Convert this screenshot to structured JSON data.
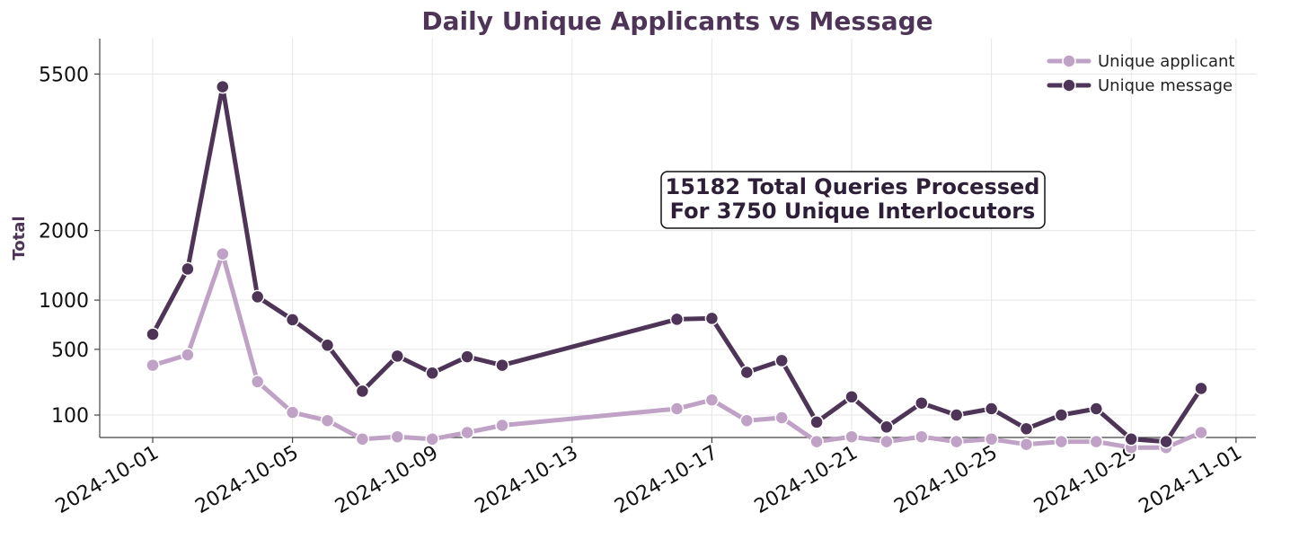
{
  "chart_data": {
    "type": "line",
    "title": "Daily Unique Applicants vs Message",
    "xlabel": "",
    "ylabel": "Total",
    "x_axis": "date",
    "xlim": [
      "2024-09-29",
      "2024-11-01"
    ],
    "ylim": [
      -250,
      5500
    ],
    "y_scale": "sqrt",
    "grid": true,
    "legend_position": "top-right",
    "yticks": [
      100,
      500,
      1000,
      2000,
      5500
    ],
    "xticks": [
      "2024-10-01",
      "2024-10-05",
      "2024-10-09",
      "2024-10-13",
      "2024-10-17",
      "2024-10-21",
      "2024-10-25",
      "2024-10-29",
      "2024-11-01"
    ],
    "series": [
      {
        "name": "Unique applicant",
        "color": "#c0a2c7",
        "points": [
          [
            "2024-10-01",
            375
          ],
          [
            "2024-10-02",
            455
          ],
          [
            "2024-10-03",
            1625
          ],
          [
            "2024-10-04",
            265
          ],
          [
            "2024-10-05",
            110
          ],
          [
            "2024-10-06",
            80
          ],
          [
            "2024-10-07",
            30
          ],
          [
            "2024-10-08",
            35
          ],
          [
            "2024-10-09",
            30
          ],
          [
            "2024-10-10",
            45
          ],
          [
            "2024-10-11",
            65
          ],
          [
            "2024-10-16",
            125
          ],
          [
            "2024-10-17",
            165
          ],
          [
            "2024-10-18",
            80
          ],
          [
            "2024-10-19",
            90
          ],
          [
            "2024-10-20",
            25
          ],
          [
            "2024-10-21",
            35
          ],
          [
            "2024-10-22",
            25
          ],
          [
            "2024-10-23",
            35
          ],
          [
            "2024-10-24",
            25
          ],
          [
            "2024-10-25",
            30
          ],
          [
            "2024-10-26",
            20
          ],
          [
            "2024-10-27",
            25
          ],
          [
            "2024-10-28",
            25
          ],
          [
            "2024-10-29",
            15
          ],
          [
            "2024-10-30",
            15
          ],
          [
            "2024-10-31",
            45
          ]
        ]
      },
      {
        "name": "Unique message",
        "color": "#4e3558",
        "points": [
          [
            "2024-10-01",
            635
          ],
          [
            "2024-10-02",
            1405
          ],
          [
            "2024-10-03",
            5150
          ],
          [
            "2024-10-04",
            1040
          ],
          [
            "2024-10-05",
            780
          ],
          [
            "2024-10-06",
            535
          ],
          [
            "2024-10-07",
            210
          ],
          [
            "2024-10-08",
            445
          ],
          [
            "2024-10-09",
            320
          ],
          [
            "2024-10-10",
            440
          ],
          [
            "2024-10-11",
            375
          ],
          [
            "2024-10-16",
            785
          ],
          [
            "2024-10-17",
            795
          ],
          [
            "2024-10-18",
            325
          ],
          [
            "2024-10-19",
            410
          ],
          [
            "2024-10-20",
            75
          ],
          [
            "2024-10-21",
            180
          ],
          [
            "2024-10-22",
            60
          ],
          [
            "2024-10-23",
            150
          ],
          [
            "2024-10-24",
            100
          ],
          [
            "2024-10-25",
            125
          ],
          [
            "2024-10-26",
            55
          ],
          [
            "2024-10-27",
            100
          ],
          [
            "2024-10-28",
            125
          ],
          [
            "2024-10-29",
            30
          ],
          [
            "2024-10-30",
            25
          ],
          [
            "2024-10-31",
            225
          ]
        ]
      }
    ],
    "annotation": {
      "line1": "15182 Total Queries Processed",
      "line2": "For 3750 Unique Interlocutors"
    },
    "colors": {
      "title": "#4e3558",
      "grid": "#e6e6e6",
      "axis": "#444444",
      "annotation_text": "#2e1f38"
    }
  }
}
